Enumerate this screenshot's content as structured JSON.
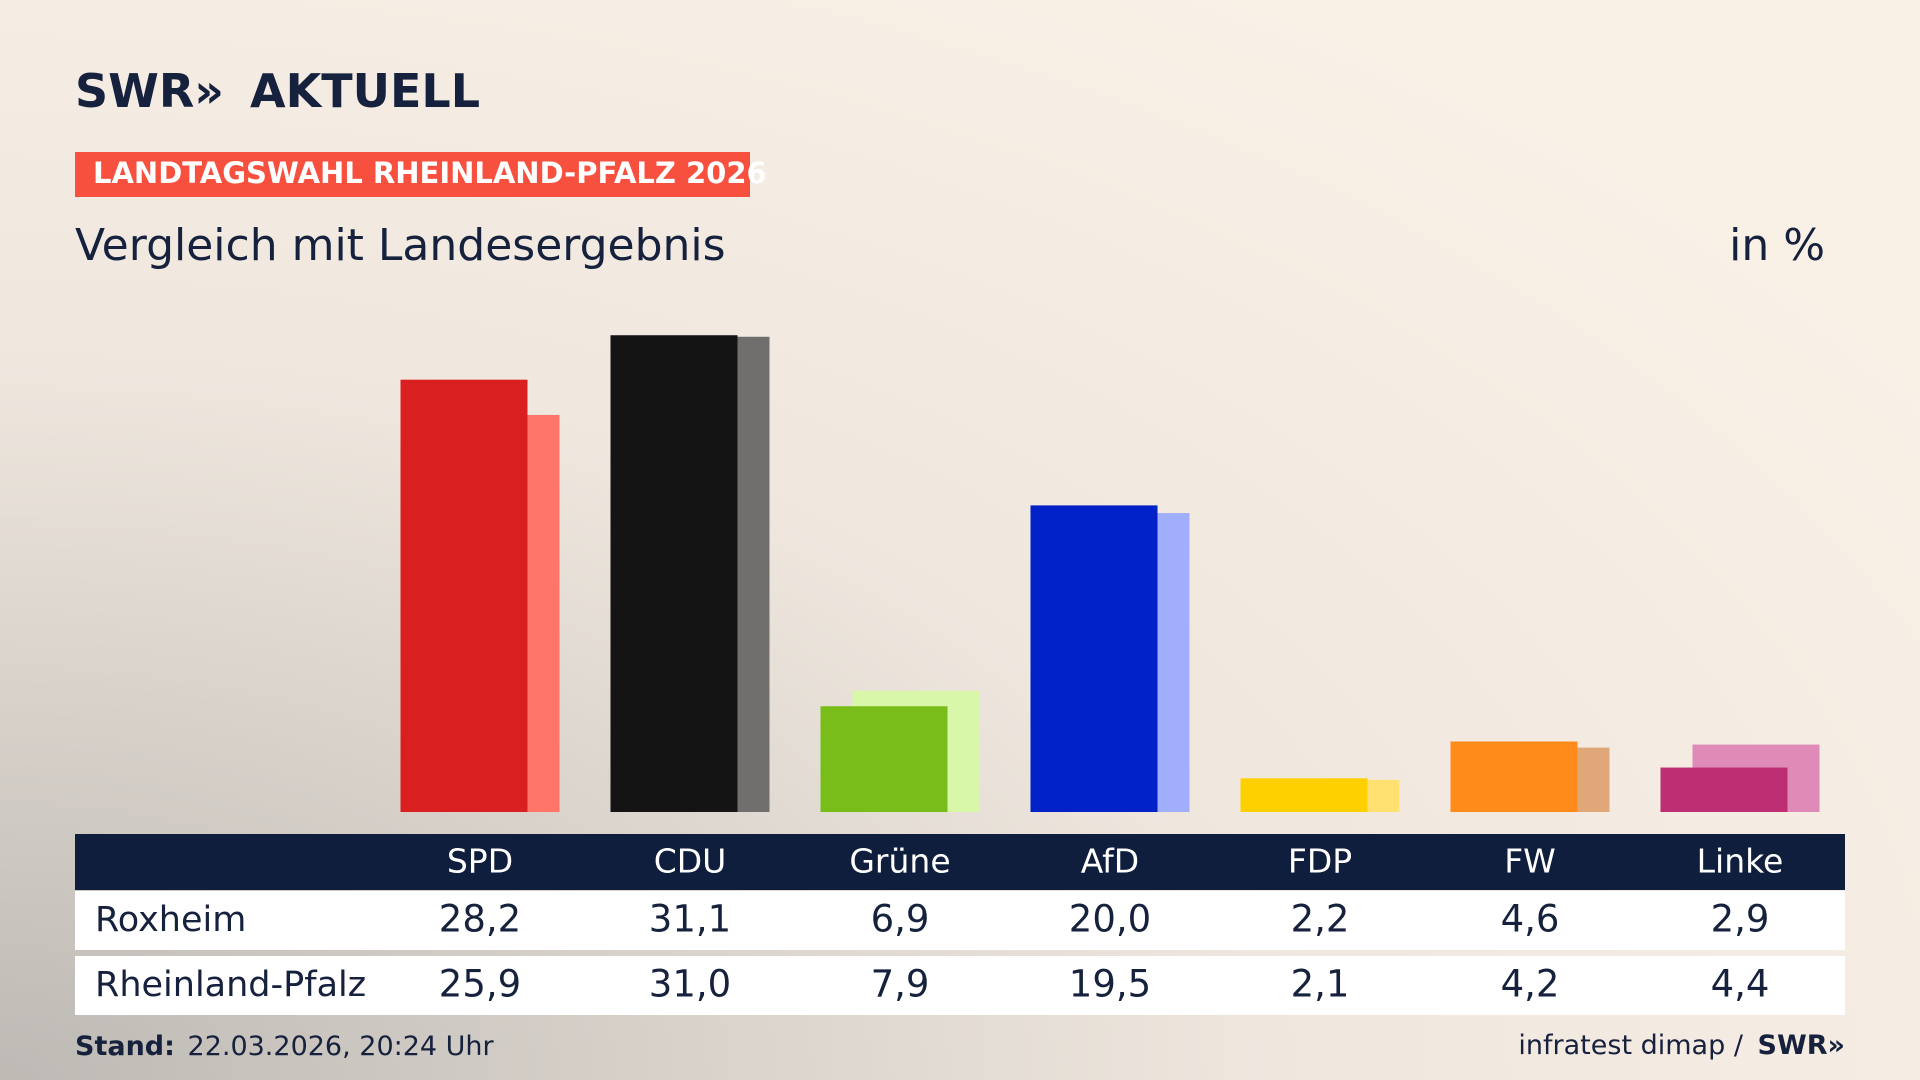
{
  "chart_data": {
    "type": "bar",
    "brand": "SWR»",
    "brand_suffix": "AKTUELL",
    "kicker": "LANDTAGSWAHL RHEINLAND-PFALZ 2026",
    "title": "Vergleich mit Landesergebnis",
    "unit": "in %",
    "categories": [
      "SPD",
      "CDU",
      "Grüne",
      "AfD",
      "FDP",
      "FW",
      "Linke"
    ],
    "series": [
      {
        "name": "Roxheim",
        "colors": [
          "#d91f1f",
          "#141414",
          "#79bd1b",
          "#0020c8",
          "#ffd000",
          "#ff8c1a",
          "#bd2e73"
        ],
        "values": [
          28.2,
          31.1,
          6.9,
          20.0,
          2.2,
          4.6,
          2.9
        ],
        "value_labels": [
          "28,2",
          "31,1",
          "6,9",
          "20,0",
          "2,2",
          "4,6",
          "2,9"
        ]
      },
      {
        "name": "Rheinland-Pfalz",
        "colors": [
          "#ff756a",
          "#706f6e",
          "#d8f7a9",
          "#a0aefc",
          "#ffe172",
          "#e0a878",
          "#e08ab8"
        ],
        "values": [
          25.9,
          31.0,
          7.9,
          19.5,
          2.1,
          4.2,
          4.4
        ],
        "value_labels": [
          "25,9",
          "31,0",
          "7,9",
          "19,5",
          "2,1",
          "4,2",
          "4,4"
        ]
      }
    ],
    "footer_label": "Stand:",
    "footer_date": "22.03.2026, 20:24 Uhr",
    "source": "infratest dimap /",
    "source_brand": "SWR»"
  }
}
